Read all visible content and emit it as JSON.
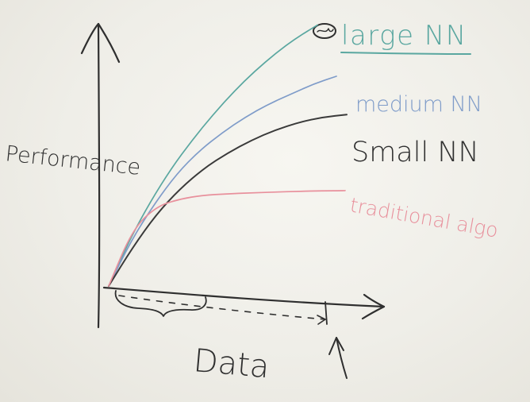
{
  "chart_data": {
    "type": "line",
    "title": "",
    "xlabel": "Data",
    "ylabel": "Performance",
    "xlim": [
      0,
      100
    ],
    "ylim": [
      0,
      100
    ],
    "grid": false,
    "legend": "inline-right",
    "series": [
      {
        "name": "large NN",
        "label": "large NN",
        "color": "#5aa7a0",
        "x": [
          0,
          10,
          20,
          30,
          40,
          50,
          60,
          70,
          80,
          90,
          100
        ],
        "values": [
          0,
          18,
          33,
          46,
          57,
          67,
          76,
          84,
          91,
          97,
          102
        ]
      },
      {
        "name": "medium NN",
        "label": "medium NN",
        "color": "#7f9cc9",
        "x": [
          0,
          10,
          20,
          30,
          40,
          50,
          60,
          70,
          80,
          90,
          100
        ],
        "values": [
          0,
          18,
          32,
          44,
          53,
          60,
          66,
          71,
          75,
          79,
          82
        ]
      },
      {
        "name": "small NN",
        "label": "Small NN",
        "color": "#3a3a3a",
        "x": [
          0,
          10,
          20,
          30,
          40,
          50,
          60,
          70,
          80,
          90,
          100
        ],
        "values": [
          0,
          15,
          28,
          38,
          46,
          52,
          57,
          61,
          64,
          66,
          67
        ]
      },
      {
        "name": "traditional algo",
        "label": "traditional algo",
        "color": "#e8909c",
        "x": [
          0,
          10,
          20,
          30,
          40,
          50,
          60,
          70,
          80,
          90,
          100
        ],
        "values": [
          0,
          22,
          31,
          34,
          35.5,
          36,
          36.4,
          36.7,
          37,
          37.2,
          37.3
        ]
      }
    ],
    "annotations": [
      "large NN"
    ]
  },
  "colors": {
    "marker": "#2f2f2f",
    "underline": "#5aa7a0"
  }
}
